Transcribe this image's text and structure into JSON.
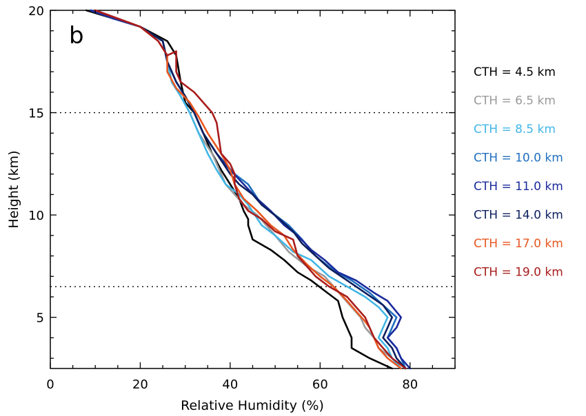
{
  "chart_data": {
    "type": "line",
    "panel_label": "b",
    "xlabel": "Relative Humidity (%)",
    "ylabel": "Height (km)",
    "xlim": [
      0,
      90
    ],
    "ylim": [
      2.5,
      20
    ],
    "xticks": [
      0,
      20,
      40,
      60,
      80
    ],
    "yticks": [
      5,
      10,
      15,
      20
    ],
    "reference_lines_y": [
      15,
      6.5
    ],
    "legend_position": "right, outside plot",
    "grid": false,
    "series": [
      {
        "name": "CTH = 4.5 km",
        "color": "#000000",
        "points": [
          [
            8,
            20
          ],
          [
            14,
            19.6
          ],
          [
            20,
            19.2
          ],
          [
            26,
            18.5
          ],
          [
            28,
            17.8
          ],
          [
            29,
            16.5
          ],
          [
            30,
            15.5
          ],
          [
            32,
            15
          ],
          [
            34,
            14
          ],
          [
            36,
            13
          ],
          [
            38,
            12.2
          ],
          [
            40,
            11.5
          ],
          [
            42,
            10.8
          ],
          [
            43,
            10.2
          ],
          [
            44,
            9.8
          ],
          [
            44,
            9.5
          ],
          [
            45,
            8.8
          ],
          [
            49,
            8.3
          ],
          [
            52,
            7.8
          ],
          [
            55,
            7.2
          ],
          [
            58,
            6.8
          ],
          [
            61,
            6.3
          ],
          [
            64,
            5.8
          ],
          [
            65,
            5
          ],
          [
            66,
            4.5
          ],
          [
            67,
            4
          ],
          [
            67,
            3.5
          ],
          [
            71,
            3
          ],
          [
            76,
            2.5
          ]
        ]
      },
      {
        "name": "CTH = 6.5 km",
        "color": "#9a9a9a",
        "points": [
          [
            9,
            20
          ],
          [
            14,
            19.6
          ],
          [
            20,
            19.2
          ],
          [
            25,
            18.5
          ],
          [
            26,
            17.5
          ],
          [
            27,
            16.5
          ],
          [
            29,
            15.8
          ],
          [
            31,
            15
          ],
          [
            33,
            14
          ],
          [
            36,
            13
          ],
          [
            38,
            12
          ],
          [
            39,
            11.5
          ],
          [
            41,
            11
          ],
          [
            43,
            10.5
          ],
          [
            46,
            10
          ],
          [
            48,
            9.5
          ],
          [
            50,
            9
          ],
          [
            53,
            8.2
          ],
          [
            57,
            7.5
          ],
          [
            61,
            7
          ],
          [
            63,
            6.5
          ],
          [
            65,
            6
          ],
          [
            67,
            5.5
          ],
          [
            69,
            5
          ],
          [
            70,
            4.5
          ],
          [
            72,
            4
          ],
          [
            73,
            3.5
          ],
          [
            76,
            3
          ],
          [
            78,
            2.5
          ]
        ]
      },
      {
        "name": "CTH = 8.5 km",
        "color": "#41b6e6",
        "points": [
          [
            9,
            20
          ],
          [
            14,
            19.6
          ],
          [
            20,
            19.2
          ],
          [
            25,
            18.5
          ],
          [
            26,
            17.5
          ],
          [
            27,
            16.5
          ],
          [
            29,
            15.8
          ],
          [
            31,
            15
          ],
          [
            33,
            14
          ],
          [
            35,
            13
          ],
          [
            37,
            12.2
          ],
          [
            39,
            11.5
          ],
          [
            42,
            11
          ],
          [
            44,
            10.5
          ],
          [
            47,
            9.5
          ],
          [
            50,
            9
          ],
          [
            54,
            8.2
          ],
          [
            58,
            7.8
          ],
          [
            62,
            7
          ],
          [
            66,
            6.5
          ],
          [
            70,
            6
          ],
          [
            73,
            5.5
          ],
          [
            75,
            5
          ],
          [
            74,
            4.5
          ],
          [
            73,
            4
          ],
          [
            75,
            3.5
          ],
          [
            76,
            3
          ],
          [
            78,
            2.5
          ]
        ]
      },
      {
        "name": "CTH = 10.0 km",
        "color": "#1f6fbf",
        "points": [
          [
            9,
            20
          ],
          [
            14,
            19.6
          ],
          [
            20,
            19.2
          ],
          [
            25,
            18.5
          ],
          [
            26,
            17.5
          ],
          [
            28,
            16.5
          ],
          [
            30,
            15.8
          ],
          [
            32,
            15
          ],
          [
            34,
            14
          ],
          [
            37,
            13
          ],
          [
            39,
            12.5
          ],
          [
            41,
            12
          ],
          [
            44,
            11.5
          ],
          [
            47,
            10.5
          ],
          [
            50,
            10
          ],
          [
            53,
            9.5
          ],
          [
            56,
            8.8
          ],
          [
            59,
            8
          ],
          [
            63,
            7.3
          ],
          [
            67,
            6.8
          ],
          [
            71,
            6.2
          ],
          [
            74,
            5.6
          ],
          [
            77,
            5
          ],
          [
            76,
            4.5
          ],
          [
            75,
            4
          ],
          [
            77,
            3.5
          ],
          [
            78,
            3
          ],
          [
            79,
            2.5
          ]
        ]
      },
      {
        "name": "CTH = 11.0 km",
        "color": "#1a2a9c",
        "points": [
          [
            9,
            20
          ],
          [
            14,
            19.6
          ],
          [
            20,
            19.2
          ],
          [
            25,
            18.5
          ],
          [
            26,
            17.5
          ],
          [
            28,
            16.5
          ],
          [
            30,
            15.8
          ],
          [
            32,
            15
          ],
          [
            34,
            14
          ],
          [
            37,
            13
          ],
          [
            40,
            12.2
          ],
          [
            43,
            11.5
          ],
          [
            46,
            10.8
          ],
          [
            49,
            10.2
          ],
          [
            52,
            9.5
          ],
          [
            55,
            9
          ],
          [
            58,
            8.3
          ],
          [
            61,
            7.8
          ],
          [
            64,
            7.2
          ],
          [
            68,
            6.8
          ],
          [
            72,
            6.2
          ],
          [
            75,
            5.8
          ],
          [
            78,
            5
          ],
          [
            77,
            4.5
          ],
          [
            75,
            4
          ],
          [
            77,
            3.5
          ],
          [
            78,
            3
          ],
          [
            80,
            2.5
          ]
        ]
      },
      {
        "name": "CTH = 14.0 km",
        "color": "#0d1f5e",
        "points": [
          [
            10,
            20
          ],
          [
            15,
            19.6
          ],
          [
            20,
            19.2
          ],
          [
            25,
            18.5
          ],
          [
            26,
            17.5
          ],
          [
            28,
            16.5
          ],
          [
            30,
            15.8
          ],
          [
            32,
            15
          ],
          [
            34,
            14
          ],
          [
            37,
            13
          ],
          [
            40,
            12
          ],
          [
            42,
            11.5
          ],
          [
            45,
            11
          ],
          [
            47,
            10.5
          ],
          [
            51,
            9.8
          ],
          [
            54,
            9.2
          ],
          [
            56,
            8.6
          ],
          [
            59,
            8
          ],
          [
            62,
            7.4
          ],
          [
            66,
            6.8
          ],
          [
            70,
            6.2
          ],
          [
            74,
            5.6
          ],
          [
            76,
            5
          ],
          [
            75,
            4.5
          ],
          [
            74,
            4
          ],
          [
            76,
            3.5
          ],
          [
            77,
            3
          ],
          [
            79,
            2.5
          ]
        ]
      },
      {
        "name": "CTH = 17.0 km",
        "color": "#e8561f",
        "points": [
          [
            10,
            20
          ],
          [
            15,
            19.6
          ],
          [
            20,
            19.2
          ],
          [
            24,
            18.5
          ],
          [
            26,
            17.8
          ],
          [
            26,
            17
          ],
          [
            28,
            16.2
          ],
          [
            31,
            15.5
          ],
          [
            33,
            14.8
          ],
          [
            35,
            14
          ],
          [
            38,
            13
          ],
          [
            40,
            12.2
          ],
          [
            41,
            11.5
          ],
          [
            43,
            10.8
          ],
          [
            46,
            10.2
          ],
          [
            49,
            9.5
          ],
          [
            52,
            9
          ],
          [
            54,
            8.3
          ],
          [
            57,
            7.6
          ],
          [
            60,
            7
          ],
          [
            63,
            6.5
          ],
          [
            66,
            5.8
          ],
          [
            68,
            5.3
          ],
          [
            70,
            4.8
          ],
          [
            71,
            4.5
          ],
          [
            72,
            4
          ],
          [
            73,
            3.5
          ],
          [
            75,
            3
          ],
          [
            78,
            2.5
          ]
        ]
      },
      {
        "name": "CTH = 19.0 km",
        "color": "#a81c1c",
        "points": [
          [
            10,
            20
          ],
          [
            15,
            19.6
          ],
          [
            20,
            19.2
          ],
          [
            24,
            18.5
          ],
          [
            26,
            17.8
          ],
          [
            28,
            18
          ],
          [
            28,
            17
          ],
          [
            29,
            16.5
          ],
          [
            32,
            16
          ],
          [
            36,
            15
          ],
          [
            37,
            14.5
          ],
          [
            38,
            13
          ],
          [
            40,
            12.5
          ],
          [
            41,
            12
          ],
          [
            41,
            11.5
          ],
          [
            42,
            10.8
          ],
          [
            44,
            10.2
          ],
          [
            47,
            9.8
          ],
          [
            50,
            9.2
          ],
          [
            54,
            8.8
          ],
          [
            55,
            8
          ],
          [
            57,
            7.5
          ],
          [
            59,
            7
          ],
          [
            62,
            6.5
          ],
          [
            66,
            6
          ],
          [
            68,
            5.5
          ],
          [
            70,
            5
          ],
          [
            71,
            4.5
          ],
          [
            72,
            4
          ],
          [
            74,
            3.5
          ],
          [
            76,
            3
          ],
          [
            79,
            2.5
          ]
        ]
      }
    ]
  }
}
